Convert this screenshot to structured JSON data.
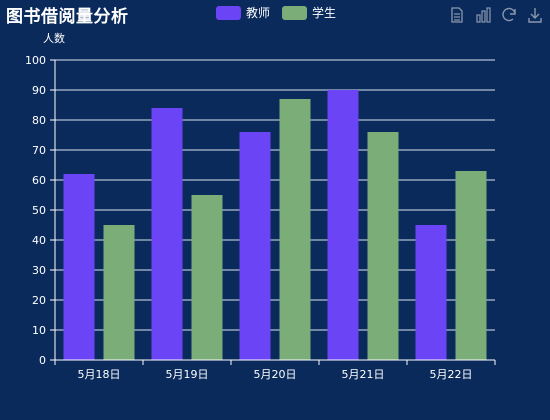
{
  "title": "图书借阅量分析",
  "legend": {
    "items": [
      {
        "label": "教师",
        "color": "#6a44f5"
      },
      {
        "label": "学生",
        "color": "#7aad78"
      }
    ]
  },
  "toolbox": {
    "icons": [
      "data-view-icon",
      "bar-chart-icon",
      "restore-icon",
      "download-icon"
    ]
  },
  "chart_data": {
    "type": "bar",
    "title": "图书借阅量分析",
    "ylabel": "人数",
    "xlabel": "",
    "categories": [
      "5月18日",
      "5月19日",
      "5月20日",
      "5月21日",
      "5月22日"
    ],
    "series": [
      {
        "name": "教师",
        "color": "#6a44f5",
        "values": [
          62,
          84,
          76,
          90,
          45
        ]
      },
      {
        "name": "学生",
        "color": "#7aad78",
        "values": [
          45,
          55,
          87,
          76,
          63
        ]
      }
    ],
    "ylim": [
      0,
      100
    ],
    "yticks": [
      0,
      10,
      20,
      30,
      40,
      50,
      60,
      70,
      80,
      90,
      100
    ],
    "grid": true,
    "legend_position": "top-center"
  }
}
